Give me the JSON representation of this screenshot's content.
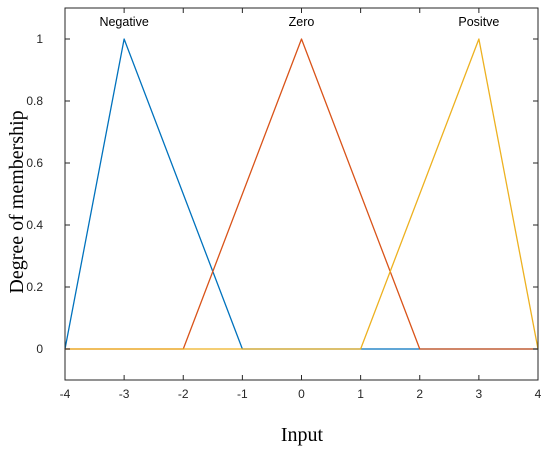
{
  "chart_data": {
    "type": "line",
    "xlabel": "Input",
    "ylabel": "Degree of membership",
    "xlim": [
      -4,
      4
    ],
    "ylim": [
      -0.1,
      1.1
    ],
    "x_ticks": [
      "-4",
      "-3",
      "-2",
      "-1",
      "0",
      "1",
      "2",
      "3",
      "4"
    ],
    "y_ticks": [
      "0",
      "0.2",
      "0.4",
      "0.6",
      "0.8",
      "1"
    ],
    "grid": false,
    "series": [
      {
        "name": "Negative",
        "color": "#0072BD",
        "x": [
          -4,
          -3,
          -1,
          4
        ],
        "y": [
          0,
          1,
          0,
          0
        ]
      },
      {
        "name": "Zero",
        "color": "#D95319",
        "x": [
          -4,
          -2,
          0,
          2,
          4
        ],
        "y": [
          0,
          0,
          1,
          0,
          0
        ]
      },
      {
        "name": "Positve",
        "color": "#EDB120",
        "x": [
          -4,
          1,
          3,
          4
        ],
        "y": [
          0,
          0,
          1,
          0
        ]
      }
    ]
  }
}
